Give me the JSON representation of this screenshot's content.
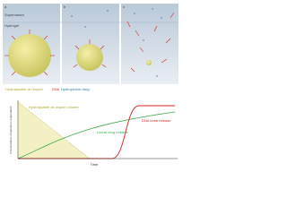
{
  "panels": [
    {
      "label": "a"
    },
    {
      "label": "b"
    },
    {
      "label": "c"
    }
  ],
  "regions": {
    "top": "Supernatant",
    "bottom": "Hydrogel"
  },
  "legend": {
    "oil": "Hydrolysable oil droplet",
    "dna": "DNA",
    "drug": "Hydrophobic drug"
  },
  "plot": {
    "y_label": "Concentration of species in supernatant",
    "x_label": "Time",
    "curves": {
      "oil": "Hydrolysable oil droplet volume",
      "drug": "Linear drug release",
      "dna": "DNA burst release"
    }
  }
}
